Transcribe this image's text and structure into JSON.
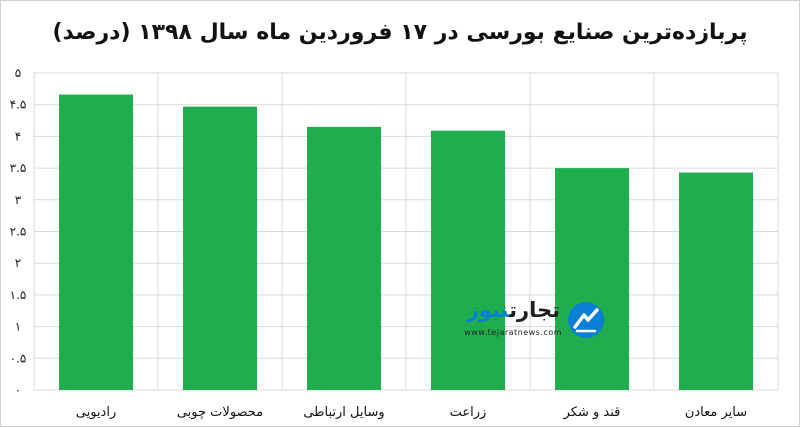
{
  "chart_data": {
    "type": "bar",
    "title": "پربازده‌ترین صنایع بورسی در ۱۷ فروردین ماه سال ۱۳۹۸ (درصد)",
    "categories": [
      "رادیویی",
      "محصولات چوبی",
      "وسایل ارتباطی",
      "زراعت",
      "قند و شکر",
      "سایر معادن"
    ],
    "values": [
      4.66,
      4.47,
      4.15,
      4.09,
      3.5,
      3.43
    ],
    "ylim": [
      0,
      5
    ],
    "yticks": [
      0,
      0.5,
      1,
      1.5,
      2,
      2.5,
      3,
      3.5,
      4,
      4.5,
      5
    ],
    "ytick_labels": [
      "۰",
      "۰.۵",
      "۱",
      "۱.۵",
      "۲",
      "۲.۵",
      "۳",
      "۳.۵",
      "۴",
      "۴.۵",
      "۵"
    ],
    "xlabel": "",
    "ylabel": "",
    "grid": true,
    "legend": "none",
    "bar_color": "#1fad4e",
    "grid_color": "#d9d9d9"
  },
  "watermark": {
    "brand_part_a": "تجارت",
    "brand_part_b": "نیوز",
    "url": "www.tejaratnews.com",
    "icon": "tejaratnews-logo-icon",
    "dark_color": "#1e1e1e",
    "accent_color": "#0a7fd6"
  }
}
